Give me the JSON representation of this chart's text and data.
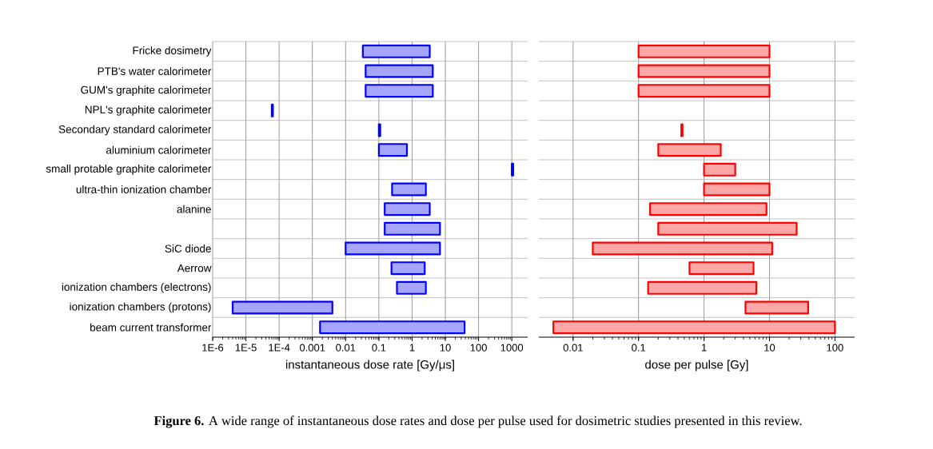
{
  "chart_data": [
    {
      "type": "bar",
      "orientation": "horizontal",
      "log": "x",
      "grid": true,
      "color": "#0000ff",
      "categories": [
        "Fricke dosimetry",
        "PTB's water calorimeter",
        "GUM's graphite calorimeter",
        "NPL's graphite calorimeter",
        "Secondary standard calorimeter",
        "aluminium calorimeter",
        "small protable graphite calorimeter",
        "ultra-thin ionization chamber",
        "alanine",
        null,
        "SiC diode",
        "Aerrow",
        "ionization chambers (electrons)",
        "ionization chambers (protons)",
        "beam current transformer"
      ],
      "base": [
        0.033,
        0.04,
        0.04,
        6e-05,
        0.1,
        0.1,
        1000,
        0.25,
        0.15,
        0.15,
        0.01,
        0.24,
        0.35,
        4e-06,
        0.0017
      ],
      "values": [
        3.367,
        4.16,
        4.16,
        5e-06,
        0.01,
        0.6,
        100,
        2.35,
        3.25,
        6.75,
        6.89,
        2.16,
        2.25,
        0.003996,
        37.9983
      ],
      "xlim": [
        1e-06,
        3000
      ],
      "xticks": [
        {
          "value": 1e-06,
          "label": "1E-6"
        },
        {
          "value": 1e-05,
          "label": "1E-5"
        },
        {
          "value": 0.0001,
          "label": "1E-4"
        },
        0.001,
        0.01,
        0.1,
        1,
        10,
        100,
        1000
      ],
      "xlabel": "instantaneous dose rate [Gy/μs]",
      "annotations": [
        "**Figure 6.** A wide range of instantaneous dose rates and dose per pulse used for dosimetric studies presented in this review."
      ]
    },
    {
      "type": "bar",
      "orientation": "horizontal",
      "log": "x",
      "grid": true,
      "color": "#ff0000",
      "tick_labels": "x",
      "categories": [
        null,
        null,
        null,
        null,
        null,
        null,
        null,
        null,
        null,
        null,
        null,
        null,
        null,
        null,
        null
      ],
      "base": [
        0.1,
        0.1,
        0.1,
        null,
        0.45,
        0.2,
        1,
        1,
        0.15,
        0.2,
        0.02,
        0.6,
        0.14,
        4.3,
        0.005
      ],
      "values": [
        9.9,
        9.9,
        9.9,
        null,
        0.02,
        1.6,
        2,
        9,
        8.85,
        25.8,
        10.98,
        5.1,
        6.16,
        34.7,
        99.995
      ],
      "xlim": [
        0.003,
        200
      ],
      "xticks": [
        0.01,
        0.1,
        1,
        10,
        100
      ],
      "xlabel": "dose per pulse [Gy]"
    }
  ]
}
